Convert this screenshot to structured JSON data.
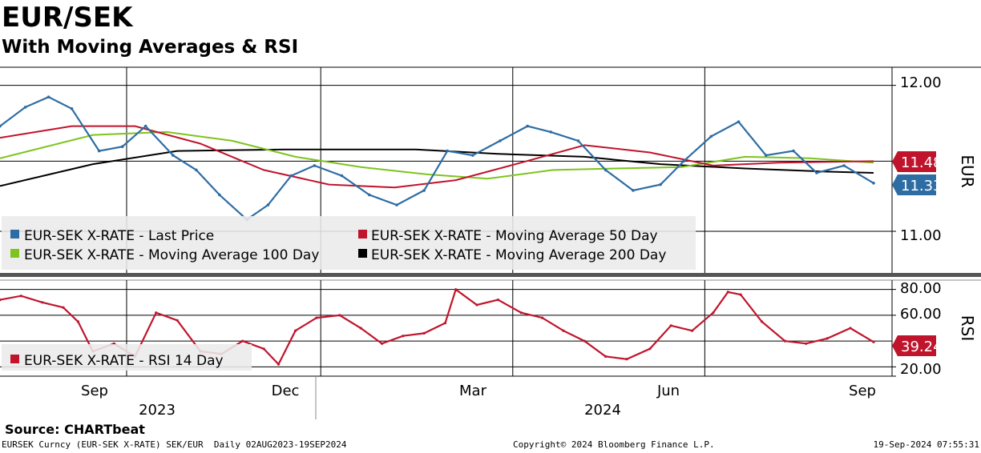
{
  "title": "EUR/SEK",
  "subtitle": "With Moving Averages & RSI",
  "source": "Source:  CHARTbeat",
  "footer": {
    "left": "EURSEK Curncy (EUR-SEK X-RATE) SEK/EUR  Daily 02AUG2023-19SEP2024",
    "middle": "Copyright© 2024 Bloomberg Finance L.P.",
    "right": "19-Sep-2024 07:55:31"
  },
  "colors": {
    "price": "#2e6da4",
    "ma50": "#c0142c",
    "ma100": "#7dc41e",
    "ma200": "#000000",
    "rsi": "#c0142c"
  },
  "chart_data": [
    {
      "type": "line",
      "panel": "price",
      "axis_label": "EUR",
      "yticks": [
        "12.00",
        "11.00"
      ],
      "ylim": [
        10.72,
        12.08
      ],
      "grid": true,
      "legend_position": "bottom-left",
      "month_labels": [
        "Sep",
        "Dec",
        "Mar",
        "Jun",
        "Sep"
      ],
      "year_labels": [
        "2023",
        "2024"
      ],
      "legend": [
        "EUR-SEK X-RATE - Last Price",
        "EUR-SEK X-RATE - Moving Average 50 Day",
        "EUR-SEK X-RATE - Moving Average 100 Day",
        "EUR-SEK X-RATE - Moving Average 200 Day"
      ],
      "last_value_labels": [
        {
          "text": "11.48",
          "value": 11.48,
          "series": "ma50"
        },
        {
          "text": "11.33",
          "value": 11.33,
          "series": "price"
        }
      ],
      "series": [
        {
          "name": "EUR-SEK X-RATE - Last Price",
          "key": "price",
          "x": [
            "2023-08-02",
            "2023-08-14",
            "2023-08-25",
            "2023-09-05",
            "2023-09-18",
            "2023-09-29",
            "2023-10-10",
            "2023-10-23",
            "2023-11-03",
            "2023-11-14",
            "2023-11-27",
            "2023-12-07",
            "2023-12-18",
            "2023-12-29",
            "2024-01-11",
            "2024-01-24",
            "2024-02-06",
            "2024-02-19",
            "2024-03-01",
            "2024-03-13",
            "2024-03-26",
            "2024-04-08",
            "2024-04-19",
            "2024-05-02",
            "2024-05-15",
            "2024-05-28",
            "2024-06-10",
            "2024-06-21",
            "2024-07-04",
            "2024-07-17",
            "2024-07-30",
            "2024-08-12",
            "2024-08-23",
            "2024-09-05",
            "2024-09-19"
          ],
          "values": [
            11.72,
            11.85,
            11.92,
            11.84,
            11.55,
            11.58,
            11.72,
            11.52,
            11.42,
            11.25,
            11.08,
            11.18,
            11.38,
            11.45,
            11.38,
            11.25,
            11.18,
            11.28,
            11.55,
            11.52,
            11.62,
            11.72,
            11.68,
            11.62,
            11.42,
            11.28,
            11.32,
            11.48,
            11.65,
            11.75,
            11.52,
            11.55,
            11.4,
            11.45,
            11.33
          ]
        },
        {
          "name": "EUR-SEK X-RATE - Moving Average 50 Day",
          "key": "ma50",
          "x": [
            "2023-08-02",
            "2023-09-05",
            "2023-10-05",
            "2023-11-05",
            "2023-12-05",
            "2024-01-05",
            "2024-02-05",
            "2024-03-05",
            "2024-04-05",
            "2024-05-05",
            "2024-06-05",
            "2024-07-05",
            "2024-08-05",
            "2024-09-19"
          ],
          "values": [
            11.64,
            11.72,
            11.72,
            11.6,
            11.42,
            11.32,
            11.3,
            11.35,
            11.47,
            11.59,
            11.54,
            11.45,
            11.47,
            11.48
          ]
        },
        {
          "name": "EUR-SEK X-RATE - Moving Average 100 Day",
          "key": "ma100",
          "x": [
            "2023-08-02",
            "2023-09-15",
            "2023-10-20",
            "2023-11-20",
            "2023-12-20",
            "2024-01-20",
            "2024-02-20",
            "2024-03-20",
            "2024-04-20",
            "2024-05-20",
            "2024-06-20",
            "2024-07-20",
            "2024-08-20",
            "2024-09-19"
          ],
          "values": [
            11.5,
            11.66,
            11.68,
            11.62,
            11.51,
            11.44,
            11.39,
            11.36,
            11.42,
            11.43,
            11.44,
            11.51,
            11.5,
            11.47
          ]
        },
        {
          "name": "EUR-SEK X-RATE - Moving Average 200 Day",
          "key": "ma200",
          "x": [
            "2023-08-02",
            "2023-09-15",
            "2023-10-25",
            "2023-12-15",
            "2024-02-15",
            "2024-03-25",
            "2024-05-05",
            "2024-06-10",
            "2024-07-20",
            "2024-08-25",
            "2024-09-19"
          ],
          "values": [
            11.31,
            11.46,
            11.55,
            11.56,
            11.56,
            11.53,
            11.51,
            11.46,
            11.43,
            11.41,
            11.4
          ]
        }
      ]
    },
    {
      "type": "line",
      "panel": "rsi",
      "axis_label": "RSI",
      "yticks": [
        "80.00",
        "60.00",
        "20.00"
      ],
      "ylim": [
        14,
        86
      ],
      "grid": true,
      "legend_position": "left",
      "legend": [
        "EUR-SEK X-RATE - RSI 14 Day"
      ],
      "last_value_labels": [
        {
          "text": "39.24",
          "value": 39.24,
          "series": "rsi"
        }
      ],
      "series": [
        {
          "name": "EUR-SEK X-RATE - RSI 14 Day",
          "key": "rsi",
          "x": [
            "2023-08-02",
            "2023-08-12",
            "2023-08-22",
            "2023-09-01",
            "2023-09-08",
            "2023-09-15",
            "2023-09-25",
            "2023-10-05",
            "2023-10-15",
            "2023-10-25",
            "2023-11-05",
            "2023-11-15",
            "2023-11-25",
            "2023-12-05",
            "2023-12-12",
            "2023-12-20",
            "2023-12-30",
            "2024-01-10",
            "2024-01-20",
            "2024-01-30",
            "2024-02-09",
            "2024-02-19",
            "2024-02-29",
            "2024-03-05",
            "2024-03-15",
            "2024-03-25",
            "2024-04-05",
            "2024-04-15",
            "2024-04-25",
            "2024-05-05",
            "2024-05-15",
            "2024-05-25",
            "2024-06-05",
            "2024-06-15",
            "2024-06-25",
            "2024-07-05",
            "2024-07-12",
            "2024-07-18",
            "2024-07-28",
            "2024-08-08",
            "2024-08-18",
            "2024-08-28",
            "2024-09-08",
            "2024-09-19"
          ],
          "values": [
            72,
            75,
            70,
            66,
            55,
            32,
            38,
            28,
            62,
            56,
            32,
            30,
            40,
            34,
            22,
            48,
            58,
            60,
            50,
            38,
            44,
            46,
            54,
            80,
            68,
            72,
            62,
            58,
            48,
            40,
            28,
            26,
            34,
            52,
            48,
            62,
            78,
            76,
            55,
            40,
            38,
            42,
            50,
            39.24
          ]
        }
      ]
    }
  ]
}
